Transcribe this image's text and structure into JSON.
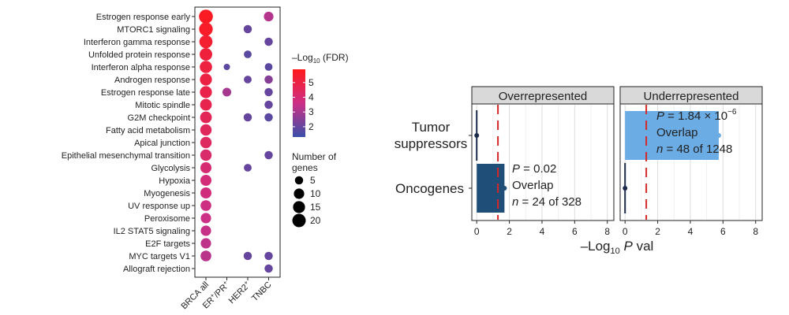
{
  "chart_data": [
    {
      "type": "dotplot",
      "categories_y": [
        "Estrogen response early",
        "MTORC1 signaling",
        "Interferon gamma response",
        "Unfolded protein response",
        "Interferon alpha response",
        "Androgen response",
        "Estrogen response late",
        "Mitotic spindle",
        "G2M checkpoint",
        "Fatty acid metabolism",
        "Apical junction",
        "Epithelial mesenchymal transition",
        "Glycolysis",
        "Hypoxia",
        "Myogenesis",
        "UV response up",
        "Peroxisome",
        "IL2 STAT5 signaling",
        "E2F targets",
        "MYC targets V1",
        "Allograft rejection"
      ],
      "categories_x": [
        {
          "base": "BRCA all",
          "sup1": "",
          "mid": "",
          "sup2": ""
        },
        {
          "base": "ER",
          "sup1": "+",
          "mid": "/PR",
          "sup2": "+"
        },
        {
          "base": "HER2",
          "sup1": "+",
          "mid": "",
          "sup2": ""
        },
        {
          "base": "TNBC",
          "sup1": "",
          "mid": "",
          "sup2": ""
        }
      ],
      "points": [
        {
          "y": 0,
          "x": 0,
          "size": 22,
          "fdr": 5.7
        },
        {
          "y": 0,
          "x": 3,
          "size": 8,
          "fdr": 3.2
        },
        {
          "y": 1,
          "x": 0,
          "size": 21,
          "fdr": 5.6
        },
        {
          "y": 1,
          "x": 2,
          "size": 5,
          "fdr": 2.0
        },
        {
          "y": 2,
          "x": 0,
          "size": 19,
          "fdr": 5.4
        },
        {
          "y": 2,
          "x": 3,
          "size": 5,
          "fdr": 2.0
        },
        {
          "y": 3,
          "x": 0,
          "size": 17,
          "fdr": 5.2
        },
        {
          "y": 3,
          "x": 2,
          "size": 4,
          "fdr": 1.8
        },
        {
          "y": 4,
          "x": 0,
          "size": 16,
          "fdr": 5.1
        },
        {
          "y": 4,
          "x": 1,
          "size": 2,
          "fdr": 1.8
        },
        {
          "y": 4,
          "x": 3,
          "size": 4,
          "fdr": 1.8
        },
        {
          "y": 5,
          "x": 0,
          "size": 15,
          "fdr": 5.0
        },
        {
          "y": 5,
          "x": 2,
          "size": 4,
          "fdr": 2.0
        },
        {
          "y": 5,
          "x": 3,
          "size": 5,
          "fdr": 2.5
        },
        {
          "y": 6,
          "x": 0,
          "size": 15,
          "fdr": 4.9
        },
        {
          "y": 6,
          "x": 1,
          "size": 6,
          "fdr": 3.0
        },
        {
          "y": 6,
          "x": 3,
          "size": 5,
          "fdr": 2.0
        },
        {
          "y": 7,
          "x": 0,
          "size": 14,
          "fdr": 4.8
        },
        {
          "y": 7,
          "x": 3,
          "size": 5,
          "fdr": 2.0
        },
        {
          "y": 8,
          "x": 0,
          "size": 14,
          "fdr": 4.6
        },
        {
          "y": 8,
          "x": 2,
          "size": 5,
          "fdr": 2.0
        },
        {
          "y": 8,
          "x": 3,
          "size": 5,
          "fdr": 1.8
        },
        {
          "y": 9,
          "x": 0,
          "size": 13,
          "fdr": 4.5
        },
        {
          "y": 10,
          "x": 0,
          "size": 13,
          "fdr": 4.4
        },
        {
          "y": 11,
          "x": 0,
          "size": 13,
          "fdr": 4.2
        },
        {
          "y": 11,
          "x": 3,
          "size": 5,
          "fdr": 2.0
        },
        {
          "y": 12,
          "x": 0,
          "size": 12,
          "fdr": 4.0
        },
        {
          "y": 12,
          "x": 2,
          "size": 4,
          "fdr": 2.0
        },
        {
          "y": 13,
          "x": 0,
          "size": 12,
          "fdr": 3.9
        },
        {
          "y": 14,
          "x": 0,
          "size": 12,
          "fdr": 3.8
        },
        {
          "y": 15,
          "x": 0,
          "size": 11,
          "fdr": 3.7
        },
        {
          "y": 16,
          "x": 0,
          "size": 10,
          "fdr": 3.6
        },
        {
          "y": 17,
          "x": 0,
          "size": 10,
          "fdr": 3.5
        },
        {
          "y": 18,
          "x": 0,
          "size": 10,
          "fdr": 3.4
        },
        {
          "y": 19,
          "x": 0,
          "size": 11,
          "fdr": 3.3
        },
        {
          "y": 19,
          "x": 2,
          "size": 5,
          "fdr": 2.0
        },
        {
          "y": 19,
          "x": 3,
          "size": 5,
          "fdr": 2.0
        },
        {
          "y": 20,
          "x": 3,
          "size": 5,
          "fdr": 2.0
        }
      ],
      "color_legend": {
        "title_pre": "–Log",
        "title_sub": "10",
        "title_post": " (FDR)",
        "range": [
          1.3,
          5.9
        ],
        "ticks": [
          2,
          3,
          4,
          5
        ],
        "colors": [
          "#3a4fa8",
          "#cc2f86",
          "#ff1a1a"
        ]
      },
      "size_legend": {
        "title": [
          "Number of",
          "genes"
        ],
        "values": [
          5,
          10,
          15,
          20
        ]
      }
    },
    {
      "type": "bar",
      "panels": [
        "Overrepresented",
        "Underrepresented"
      ],
      "categories": [
        "Tumor suppressors",
        "Oncogenes"
      ],
      "series": [
        {
          "panel": 0,
          "category": 0,
          "value": 0.0
        },
        {
          "panel": 0,
          "category": 1,
          "value": 1.7
        },
        {
          "panel": 1,
          "category": 0,
          "value": 5.74
        },
        {
          "panel": 1,
          "category": 1,
          "value": 0.0
        }
      ],
      "annotations": [
        {
          "panel": 0,
          "category": 1,
          "p_text": " = 0.02",
          "overlap": "Overlap",
          "n_text": " = 24 of 328",
          "exp": ""
        },
        {
          "panel": 1,
          "category": 0,
          "p_text": " = 1.84 × 10",
          "overlap": "Overlap",
          "n_text": " = 48 of 1248",
          "exp": "−6"
        }
      ],
      "threshold": 1.3,
      "xlim": [
        -0.3,
        8.4
      ],
      "xticks": [
        0,
        2,
        4,
        6,
        8
      ],
      "xlabel": {
        "pre": "–Log",
        "sub": "10",
        "mid": " ",
        "ital": "P",
        "post": " val"
      },
      "colors": {
        "oncogenes": "#1f4e79",
        "tumor_suppressors": "#6cace4",
        "threshold": "#d62728",
        "strip": "#d9d9d9",
        "point": "#1a2a4a"
      }
    }
  ]
}
